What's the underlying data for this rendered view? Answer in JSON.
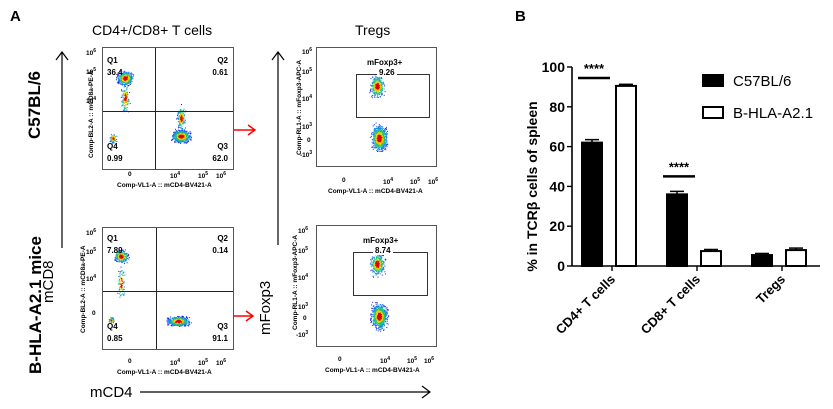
{
  "panels": {
    "a_label": "A",
    "b_label": "B"
  },
  "panel_a": {
    "col_titles": [
      "CD4+/CD8+ T cells",
      "Tregs"
    ],
    "row_labels": [
      "C57BL/6",
      "B-HLA-A2.1 mice"
    ],
    "y_axis_label": "mCD8",
    "y_axis_label_2": "mFoxp3",
    "x_axis_label": "mCD4",
    "arrow_color": "#ff0000",
    "quadrant_plots": [
      {
        "row": "C57BL/6",
        "x_label": "Comp-VL1-A :: mCD4-BV421-A",
        "y_label": "Comp-BL2-A :: mCD8a-PE-A",
        "quadrants": [
          {
            "name": "Q1",
            "value": "36.4"
          },
          {
            "name": "Q2",
            "value": "0.61"
          },
          {
            "name": "Q3",
            "value": "62.0"
          },
          {
            "name": "Q4",
            "value": "0.99"
          }
        ],
        "y_ticks": [
          "10^6",
          "10^5",
          "10^4",
          "0"
        ],
        "x_ticks": [
          "0",
          "10^4",
          "10^5",
          "10^6"
        ]
      },
      {
        "row": "B-HLA-A2.1 mice",
        "x_label": "Comp-VL1-A :: mCD4-BV421-A",
        "y_label": "Comp-BL2-A :: mCD8a-PE-A",
        "quadrants": [
          {
            "name": "Q1",
            "value": "7.89"
          },
          {
            "name": "Q2",
            "value": "0.14"
          },
          {
            "name": "Q3",
            "value": "91.1"
          },
          {
            "name": "Q4",
            "value": "0.85"
          }
        ],
        "y_ticks": [
          "10^6",
          "10^5",
          "10^4",
          "0"
        ],
        "x_ticks": [
          "0",
          "10^4",
          "10^5",
          "10^6"
        ]
      }
    ],
    "treg_plots": [
      {
        "row": "C57BL/6",
        "x_label": "Comp-VL1-A :: mCD4-BV421-A",
        "y_label": "Comp-RL1-A :: mFoxp3-APC-A",
        "gate_name": "mFoxp3+",
        "gate_value": "9.26",
        "y_ticks": [
          "10^6",
          "10^5",
          "10^4",
          "10^3",
          "0",
          "-10^3"
        ],
        "x_ticks": [
          "0",
          "10^4",
          "10^5",
          "10^6"
        ]
      },
      {
        "row": "B-HLA-A2.1 mice",
        "x_label": "Comp-VL1-A :: mCD4-BV421-A",
        "y_label": "Comp-RL1-A :: mFoxp3-APC-A",
        "gate_name": "mFoxp3+",
        "gate_value": "8.74",
        "y_ticks": [
          "10^6",
          "10^5",
          "10^4",
          "10^3",
          "0",
          "-10^3"
        ],
        "x_ticks": [
          "0",
          "10^4",
          "10^5",
          "10^6"
        ]
      }
    ]
  },
  "chart_data": {
    "type": "bar",
    "title": "",
    "xlabel": "",
    "ylabel": "% in TCRβ cells of spleen",
    "ylim": [
      0,
      100
    ],
    "yticks": [
      0,
      20,
      40,
      60,
      80,
      100
    ],
    "categories": [
      "CD4+ T cells",
      "CD8+ T cells",
      "Tregs"
    ],
    "series": [
      {
        "name": "C57BL/6",
        "fill": "#000000",
        "values": [
          62,
          36,
          5.5
        ],
        "errors": [
          1.5,
          1.5,
          0.8
        ]
      },
      {
        "name": "B-HLA-A2.1",
        "fill": "#ffffff",
        "values": [
          90.5,
          7.5,
          8
        ],
        "errors": [
          0.8,
          0.8,
          1.0
        ]
      }
    ],
    "significance": [
      {
        "category": "CD4+ T cells",
        "label": "****"
      },
      {
        "category": "CD8+ T cells",
        "label": "****"
      }
    ],
    "legend_position": "top-right",
    "grid": false
  }
}
